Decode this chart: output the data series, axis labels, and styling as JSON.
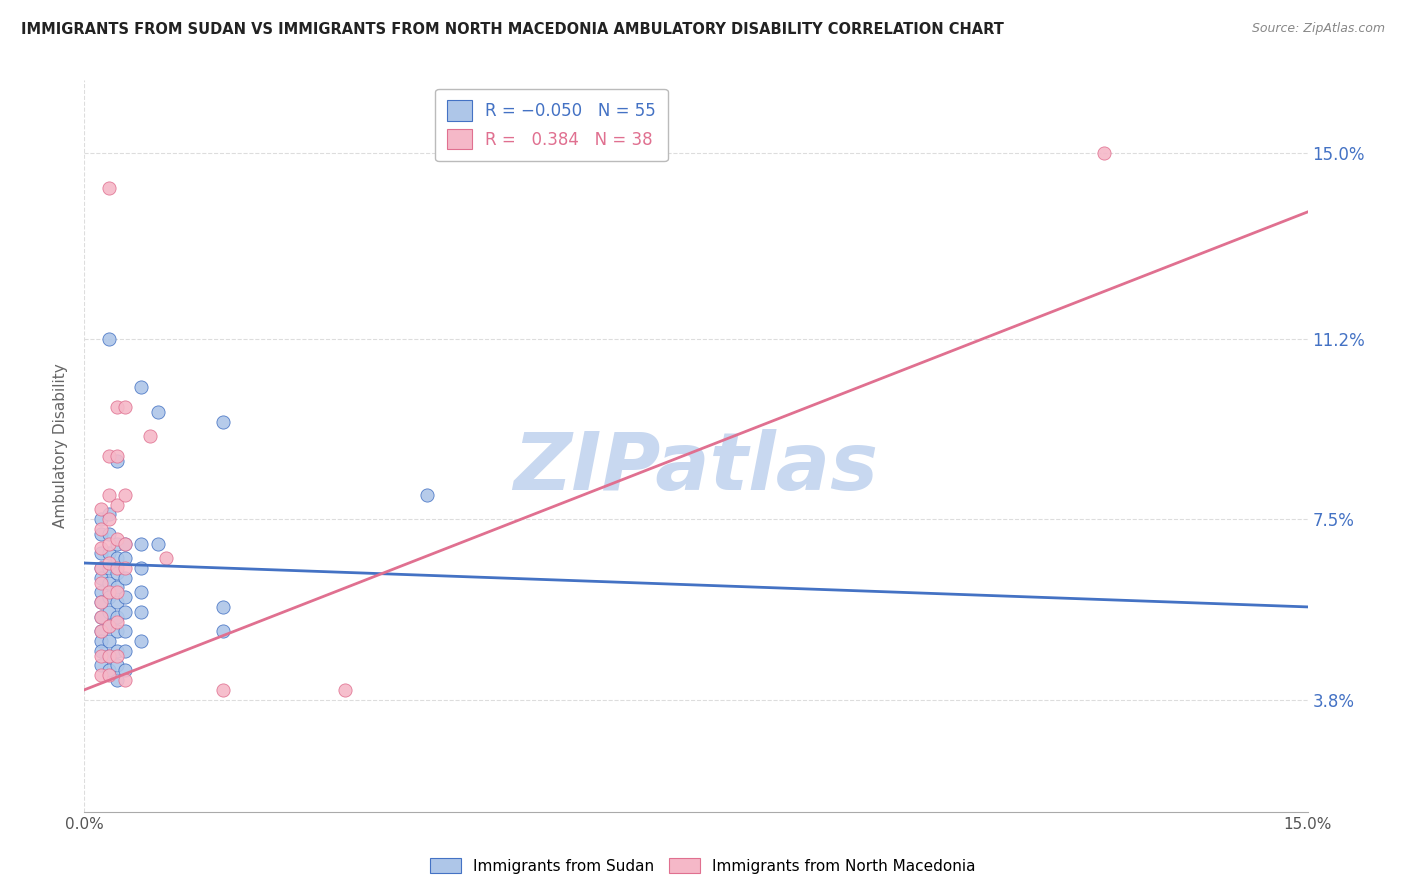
{
  "title": "IMMIGRANTS FROM SUDAN VS IMMIGRANTS FROM NORTH MACEDONIA AMBULATORY DISABILITY CORRELATION CHART",
  "source": "Source: ZipAtlas.com",
  "ylabel": "Ambulatory Disability",
  "xmin": 0.0,
  "xmax": 0.15,
  "ymin": 0.015,
  "ymax": 0.165,
  "ytick_values": [
    0.038,
    0.075,
    0.112,
    0.15
  ],
  "ytick_labels": [
    "3.8%",
    "7.5%",
    "11.2%",
    "15.0%"
  ],
  "xtick_values": [
    0.0,
    0.15
  ],
  "xtick_labels": [
    "0.0%",
    "15.0%"
  ],
  "blue_line": {
    "x0": 0.0,
    "y0": 0.066,
    "x1": 0.15,
    "y1": 0.057
  },
  "pink_line": {
    "x0": 0.0,
    "y0": 0.04,
    "x1": 0.15,
    "y1": 0.138
  },
  "sudan_points": [
    [
      0.002,
      0.075
    ],
    [
      0.002,
      0.072
    ],
    [
      0.002,
      0.068
    ],
    [
      0.002,
      0.065
    ],
    [
      0.002,
      0.063
    ],
    [
      0.002,
      0.06
    ],
    [
      0.002,
      0.058
    ],
    [
      0.002,
      0.055
    ],
    [
      0.002,
      0.052
    ],
    [
      0.002,
      0.05
    ],
    [
      0.002,
      0.048
    ],
    [
      0.002,
      0.045
    ],
    [
      0.003,
      0.112
    ],
    [
      0.003,
      0.076
    ],
    [
      0.003,
      0.072
    ],
    [
      0.003,
      0.068
    ],
    [
      0.003,
      0.065
    ],
    [
      0.003,
      0.062
    ],
    [
      0.003,
      0.059
    ],
    [
      0.003,
      0.056
    ],
    [
      0.003,
      0.053
    ],
    [
      0.003,
      0.05
    ],
    [
      0.003,
      0.047
    ],
    [
      0.003,
      0.044
    ],
    [
      0.004,
      0.087
    ],
    [
      0.004,
      0.07
    ],
    [
      0.004,
      0.067
    ],
    [
      0.004,
      0.064
    ],
    [
      0.004,
      0.061
    ],
    [
      0.004,
      0.058
    ],
    [
      0.004,
      0.055
    ],
    [
      0.004,
      0.052
    ],
    [
      0.004,
      0.048
    ],
    [
      0.004,
      0.045
    ],
    [
      0.004,
      0.042
    ],
    [
      0.005,
      0.07
    ],
    [
      0.005,
      0.067
    ],
    [
      0.005,
      0.063
    ],
    [
      0.005,
      0.059
    ],
    [
      0.005,
      0.056
    ],
    [
      0.005,
      0.052
    ],
    [
      0.005,
      0.048
    ],
    [
      0.005,
      0.044
    ],
    [
      0.007,
      0.102
    ],
    [
      0.007,
      0.07
    ],
    [
      0.007,
      0.065
    ],
    [
      0.007,
      0.06
    ],
    [
      0.007,
      0.056
    ],
    [
      0.007,
      0.05
    ],
    [
      0.009,
      0.097
    ],
    [
      0.009,
      0.07
    ],
    [
      0.017,
      0.095
    ],
    [
      0.017,
      0.057
    ],
    [
      0.017,
      0.052
    ],
    [
      0.042,
      0.08
    ]
  ],
  "macedonia_points": [
    [
      0.002,
      0.077
    ],
    [
      0.002,
      0.073
    ],
    [
      0.002,
      0.069
    ],
    [
      0.002,
      0.065
    ],
    [
      0.002,
      0.062
    ],
    [
      0.002,
      0.058
    ],
    [
      0.002,
      0.055
    ],
    [
      0.002,
      0.052
    ],
    [
      0.002,
      0.047
    ],
    [
      0.002,
      0.043
    ],
    [
      0.003,
      0.143
    ],
    [
      0.003,
      0.088
    ],
    [
      0.003,
      0.08
    ],
    [
      0.003,
      0.075
    ],
    [
      0.003,
      0.07
    ],
    [
      0.003,
      0.066
    ],
    [
      0.003,
      0.06
    ],
    [
      0.003,
      0.053
    ],
    [
      0.003,
      0.047
    ],
    [
      0.003,
      0.043
    ],
    [
      0.004,
      0.098
    ],
    [
      0.004,
      0.088
    ],
    [
      0.004,
      0.078
    ],
    [
      0.004,
      0.071
    ],
    [
      0.004,
      0.065
    ],
    [
      0.004,
      0.06
    ],
    [
      0.004,
      0.054
    ],
    [
      0.004,
      0.047
    ],
    [
      0.005,
      0.098
    ],
    [
      0.005,
      0.08
    ],
    [
      0.005,
      0.07
    ],
    [
      0.005,
      0.065
    ],
    [
      0.005,
      0.042
    ],
    [
      0.008,
      0.092
    ],
    [
      0.01,
      0.067
    ],
    [
      0.017,
      0.04
    ],
    [
      0.032,
      0.04
    ],
    [
      0.125,
      0.15
    ]
  ],
  "grid_color": "#dddddd",
  "sudan_color": "#aec6e8",
  "macedonia_color": "#f5b8c8",
  "sudan_line_color": "#4472c4",
  "macedonia_line_color": "#e07090",
  "watermark": "ZIPatlas",
  "watermark_color": "#c8d8f0",
  "background_color": "#ffffff"
}
